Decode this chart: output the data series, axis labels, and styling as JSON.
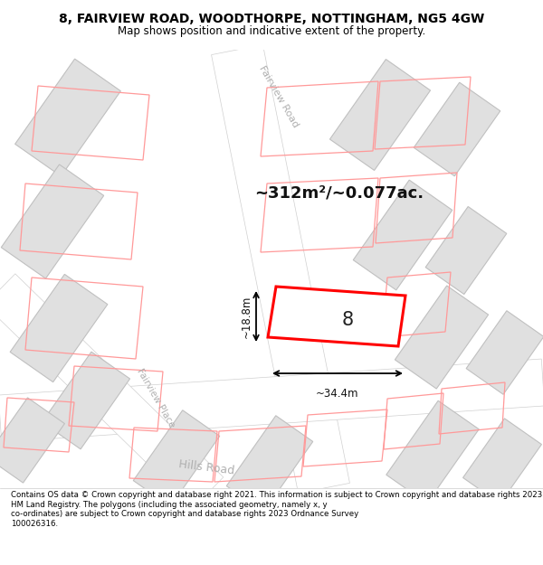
{
  "title_line1": "8, FAIRVIEW ROAD, WOODTHORPE, NOTTINGHAM, NG5 4GW",
  "title_line2": "Map shows position and indicative extent of the property.",
  "area_text": "~312m²/~0.077ac.",
  "width_label": "~34.4m",
  "height_label": "~18.8m",
  "house_number": "8",
  "footer_text": "Contains OS data © Crown copyright and database right 2021. This information is subject to Crown copyright and database rights 2023 and is reproduced with the permission of\nHM Land Registry. The polygons (including the associated geometry, namely x, y\nco-ordinates) are subject to Crown copyright and database rights 2023 Ordnance Survey\n100026316.",
  "map_bg": "#f0f0f0",
  "road_color": "#ffffff",
  "building_fill": "#e0e0e0",
  "building_edge": "#c8c8c8",
  "highlight_fill": "#ffffff",
  "highlight_edge": "#ff0000",
  "road_label_color": "#b0b0b0",
  "dimension_color": "#000000",
  "title_bg": "#ffffff",
  "footer_bg": "#ffffff"
}
